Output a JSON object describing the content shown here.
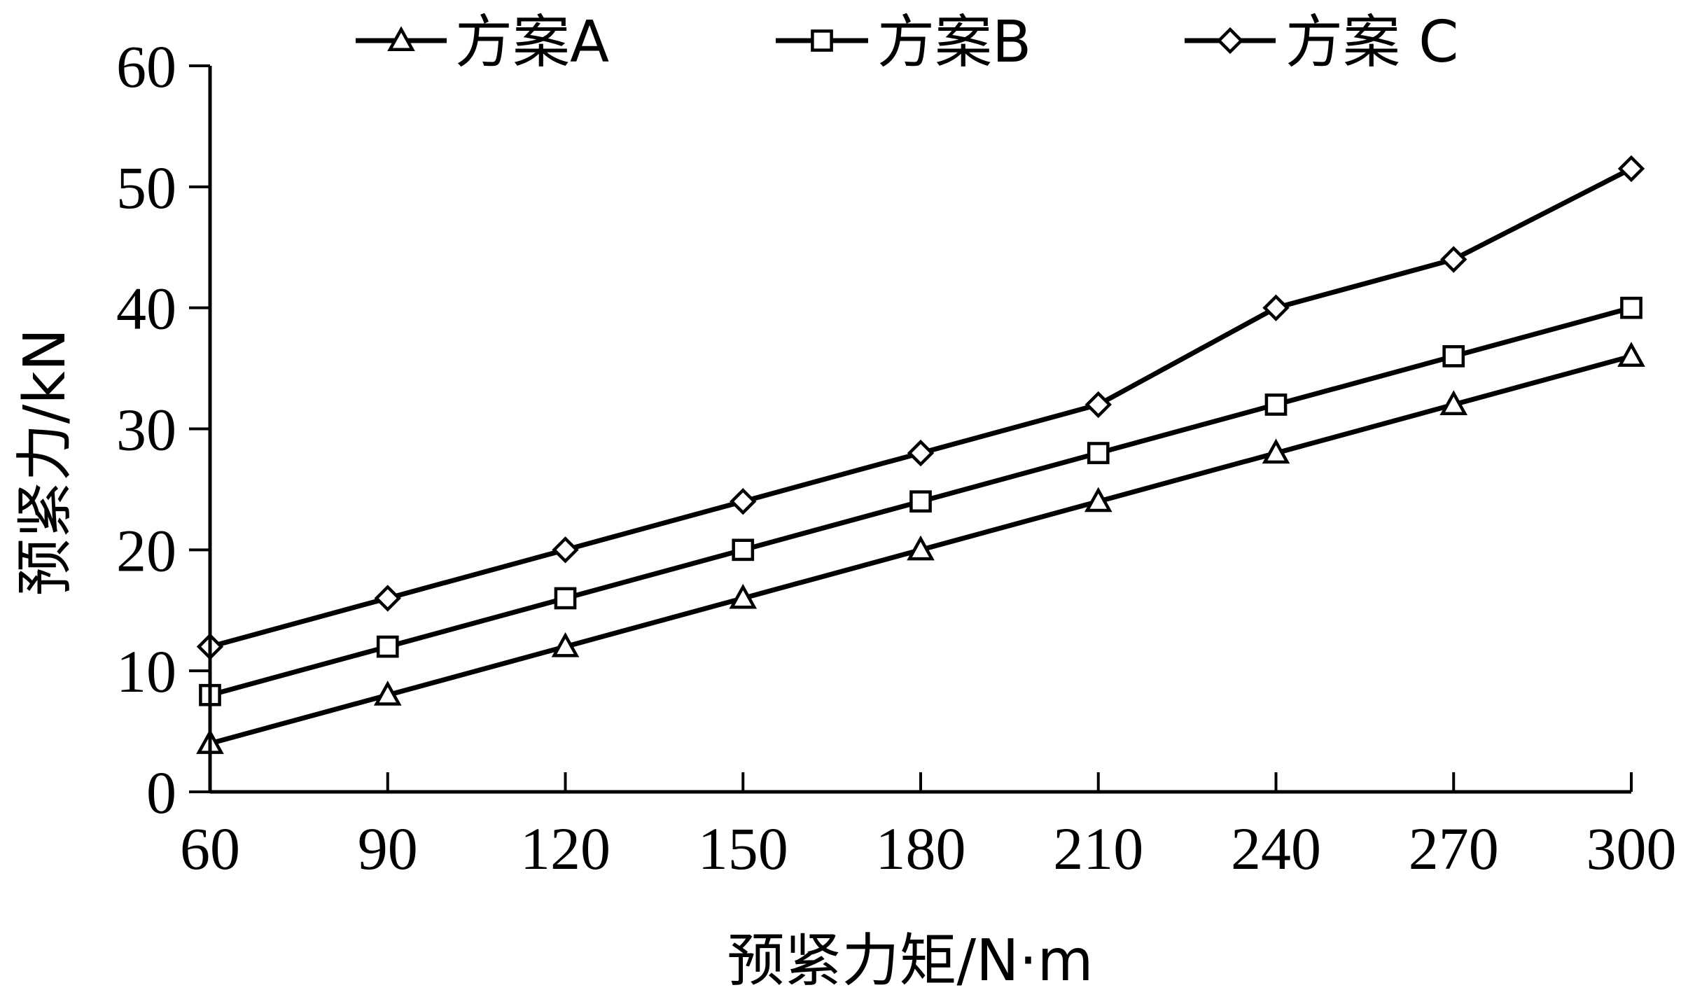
{
  "chart_data": {
    "type": "line",
    "x": [
      60,
      90,
      120,
      150,
      180,
      210,
      240,
      270,
      300
    ],
    "xticks": [
      60,
      90,
      120,
      150,
      180,
      210,
      240,
      270,
      300
    ],
    "yticks": [
      0,
      10,
      20,
      30,
      40,
      50,
      60
    ],
    "xlim": [
      60,
      300
    ],
    "ylim": [
      0,
      60
    ],
    "xlabel": "预紧力矩/N·m",
    "ylabel": "预紧力/kN",
    "legend_position": "top",
    "grid": false,
    "series": [
      {
        "name": "方案A",
        "marker": "triangle",
        "values": [
          4,
          8,
          12,
          16,
          20,
          24,
          28,
          32,
          36
        ]
      },
      {
        "name": "方案B",
        "marker": "square",
        "values": [
          8,
          12,
          16,
          20,
          24,
          28,
          32,
          36,
          40
        ]
      },
      {
        "name": "方案 C",
        "marker": "diamond",
        "values": [
          12,
          16,
          20,
          24,
          28,
          32,
          40,
          44,
          51.5
        ]
      }
    ],
    "colors": {
      "line": "#000000",
      "marker_fill": "#ffffff",
      "background": "#ffffff"
    }
  }
}
